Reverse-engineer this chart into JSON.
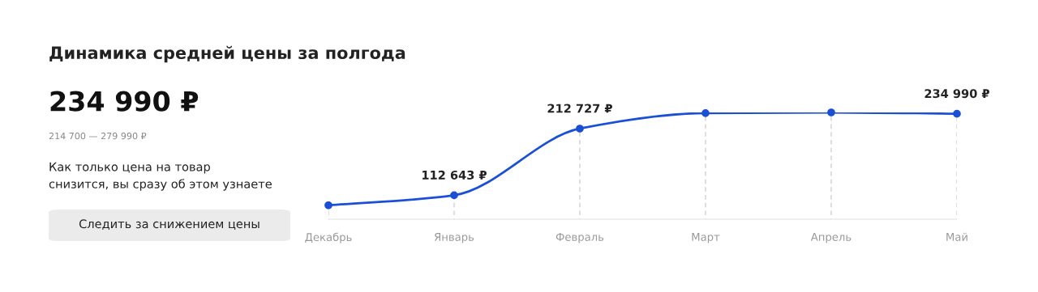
{
  "chart_data": {
    "type": "line",
    "title": "Динамика средней цены за полгода",
    "categories": [
      "Декабрь",
      "Январь",
      "Февраль",
      "Март",
      "Апрель",
      "Май"
    ],
    "series": [
      {
        "color": "#1a4fd6",
        "values": [
          97600,
          112643,
          212727,
          236000,
          237000,
          234990
        ],
        "value_labels": [
          null,
          "112 643 ₽",
          "212 727 ₽",
          null,
          null,
          "234 990 ₽"
        ]
      }
    ],
    "marker": "circle",
    "line_style": "solid",
    "grid": "x",
    "annotations": [
      "234 990 ₽",
      "214 700 — 279 990 ₽",
      "Как только цена на товар\nснизится, вы сразу об этом узнаете",
      "Следить за снижением цены"
    ]
  }
}
